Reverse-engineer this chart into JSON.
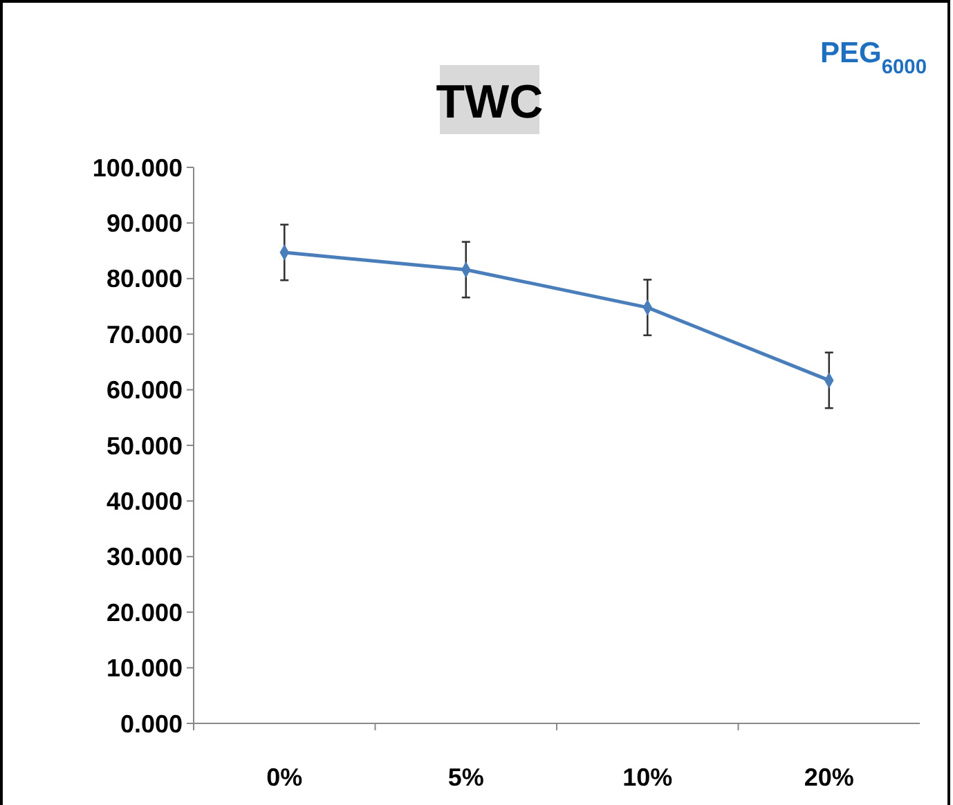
{
  "chart_data": {
    "type": "line",
    "title": "TWC",
    "annotations": [
      "PEG$_{6000}$"
    ],
    "categories": [
      "0%",
      "5%",
      "10%",
      "20%"
    ],
    "series": [
      {
        "color": "#4a7ebb",
        "values": [
          84.7,
          81.6,
          74.8,
          61.7
        ],
        "errors": [
          5,
          5,
          5,
          5
        ]
      }
    ],
    "ylim": [
      0,
      100
    ],
    "yticks": [
      {
        "value": 0,
        "label": "0.000"
      },
      {
        "value": 10,
        "label": "10.000"
      },
      {
        "value": 20,
        "label": "20.000"
      },
      {
        "value": 30,
        "label": "30.000"
      },
      {
        "value": 40,
        "label": "40.000"
      },
      {
        "value": 50,
        "label": "50.000"
      },
      {
        "value": 60,
        "label": "60.000"
      },
      {
        "value": 70,
        "label": "70.000"
      },
      {
        "value": 80,
        "label": "80.000"
      },
      {
        "value": 90,
        "label": "90.000"
      },
      {
        "value": 100,
        "label": "100.000"
      }
    ],
    "marker": "diamond",
    "line_style": "solid",
    "grid": false
  }
}
